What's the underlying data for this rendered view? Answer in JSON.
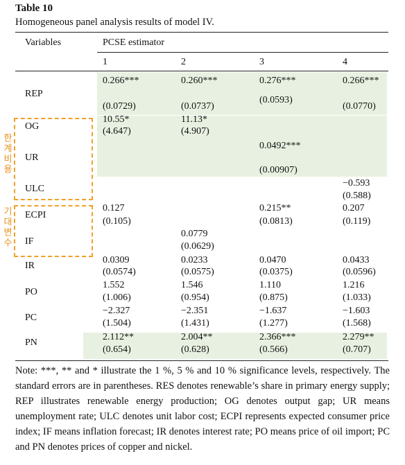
{
  "header": {
    "title": "Table 10",
    "caption": "Homogeneous panel analysis results of model IV."
  },
  "table": {
    "stub_header": "Variables",
    "group_header": "PCSE estimator",
    "columns": [
      "1",
      "2",
      "3",
      "4"
    ],
    "rows": [
      {
        "label": "REP",
        "cells": [
          {
            "estimate": "0.266***",
            "se": "(0.0729)"
          },
          {
            "estimate": "0.260***",
            "se": "(0.0737)"
          },
          {
            "estimate": "0.276***",
            "se": "(0.0593)"
          },
          {
            "estimate": "0.266***",
            "se": "(0.0770)"
          }
        ]
      },
      {
        "label": "OG",
        "cells": [
          {
            "estimate": "10.55*",
            "se": "(4.647)"
          },
          {
            "estimate": "11.13*",
            "se": "(4.907)"
          },
          null,
          null
        ]
      },
      {
        "label": "UR",
        "cells": [
          null,
          null,
          {
            "estimate": "0.0492***",
            "se": "(0.00907)"
          },
          null
        ]
      },
      {
        "label": "ULC",
        "cells": [
          null,
          null,
          null,
          {
            "estimate": "−0.593",
            "se": "(0.588)"
          }
        ]
      },
      {
        "label": "ECPI",
        "cells": [
          {
            "estimate": "0.127",
            "se": "(0.105)"
          },
          null,
          {
            "estimate": "0.215**",
            "se": "(0.0813)"
          },
          {
            "estimate": "0.207",
            "se": "(0.119)"
          }
        ]
      },
      {
        "label": "IF",
        "cells": [
          null,
          {
            "estimate": "0.0779",
            "se": "(0.0629)"
          },
          null,
          null
        ]
      },
      {
        "label": "IR",
        "cells": [
          {
            "estimate": "0.0309",
            "se": "(0.0574)"
          },
          {
            "estimate": "0.0233",
            "se": "(0.0575)"
          },
          {
            "estimate": "0.0470",
            "se": "(0.0375)"
          },
          {
            "estimate": "0.0433",
            "se": "(0.0596)"
          }
        ]
      },
      {
        "label": "PO",
        "cells": [
          {
            "estimate": "1.552",
            "se": "(1.006)"
          },
          {
            "estimate": "1.546",
            "se": "(0.954)"
          },
          {
            "estimate": "1.110",
            "se": "(0.875)"
          },
          {
            "estimate": "1.216",
            "se": "(1.033)"
          }
        ]
      },
      {
        "label": "PC",
        "cells": [
          {
            "estimate": "−2.327",
            "se": "(1.504)"
          },
          {
            "estimate": "−2.351",
            "se": "(1.431)"
          },
          {
            "estimate": "−1.637",
            "se": "(1.277)"
          },
          {
            "estimate": "−1.603",
            "se": "(1.568)"
          }
        ]
      },
      {
        "label": "PN",
        "cells": [
          {
            "estimate": "2.112**",
            "se": "(0.654)"
          },
          {
            "estimate": "2.004**",
            "se": "(0.628)"
          },
          {
            "estimate": "2.366***",
            "se": "(0.566)"
          },
          {
            "estimate": "2.279**",
            "se": "(0.707)"
          }
        ]
      }
    ]
  },
  "annotations": [
    "한계비용",
    "기대변수"
  ],
  "note": "Note: ***, ** and * illustrate the 1 %, 5 % and 10 % significance levels, respectively. The standard errors are in parentheses. RES denotes renewable’s share in primary energy supply; REP illustrates renewable energy production; OG denotes output gap; UR means unemployment rate; ULC denotes unit labor cost; ECPI represents expected consumer price index; IF means inflation forecast; IR denotes interest rate; PO means price of oil import; PC and PN denotes prices of copper and nickel."
}
